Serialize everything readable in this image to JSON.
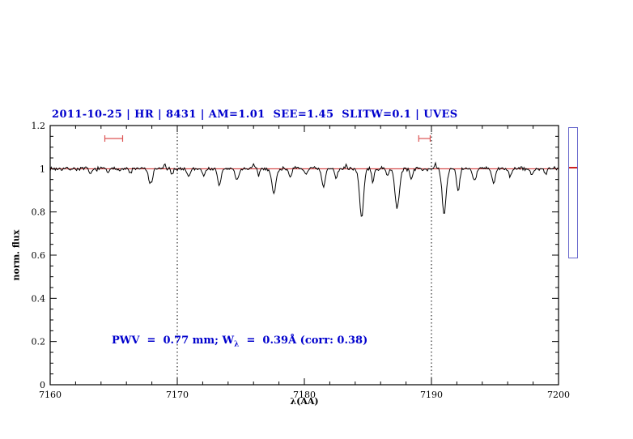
{
  "page": {
    "background": "#ffffff"
  },
  "chart_data": {
    "type": "line",
    "title": "2011-10-25 | HR | 8431 | AM=1.01  SEE=1.45  SLITW=0.1 | UVES",
    "title_color": "#0000cd",
    "xlabel": "λ(AA)",
    "ylabel": "norm. flux",
    "xlim": [
      7160,
      7200
    ],
    "ylim": [
      0,
      1.2
    ],
    "xticks": [
      7160,
      7170,
      7180,
      7190,
      7200
    ],
    "xtick_labels": [
      "7160",
      "7170",
      "7180",
      "7190",
      "7200"
    ],
    "yticks": [
      0,
      0.2,
      0.4,
      0.6,
      0.8,
      1,
      1.2
    ],
    "ytick_labels": [
      "0",
      "0.2",
      "0.4",
      "0.6",
      "0.8",
      "1",
      "1.2"
    ],
    "x_minor_step": 2,
    "y_minor_step": 0.05,
    "grid": false,
    "legend": "none",
    "vlines": {
      "positions": [
        7170,
        7190
      ],
      "style": "dotted",
      "color": "#000000"
    },
    "continuum": {
      "y": 1.0,
      "color": "#cc2222"
    },
    "markers": [
      {
        "x1": 7164.3,
        "x2": 7165.7,
        "y": 1.14
      },
      {
        "x1": 7189.0,
        "x2": 7189.9,
        "y": 1.14
      }
    ],
    "marker_color": "#dd5555",
    "series": [
      {
        "name": "spectrum",
        "color": "#000000"
      }
    ],
    "spectrum_model": {
      "baseline": 1.0,
      "step": 0.08,
      "noise_amp": 0.011,
      "seed": 7,
      "lines": [
        [
          7163.2,
          0.025,
          0.12
        ],
        [
          7164.6,
          0.02,
          0.1
        ],
        [
          7166.3,
          0.02,
          0.1
        ],
        [
          7167.9,
          0.07,
          0.16
        ],
        [
          7169.0,
          -0.02,
          0.07
        ],
        [
          7169.6,
          0.03,
          0.1
        ],
        [
          7170.9,
          0.035,
          0.12
        ],
        [
          7172.1,
          0.035,
          0.1
        ],
        [
          7173.3,
          0.075,
          0.14
        ],
        [
          7174.7,
          0.055,
          0.13
        ],
        [
          7176.0,
          -0.02,
          0.06
        ],
        [
          7176.4,
          0.03,
          0.08
        ],
        [
          7177.6,
          0.115,
          0.16
        ],
        [
          7178.9,
          0.035,
          0.1
        ],
        [
          7180.1,
          0.025,
          0.1
        ],
        [
          7181.5,
          0.085,
          0.14
        ],
        [
          7182.5,
          0.045,
          0.1
        ],
        [
          7183.3,
          -0.025,
          0.06
        ],
        [
          7184.5,
          0.225,
          0.16
        ],
        [
          7185.4,
          0.06,
          0.1
        ],
        [
          7186.5,
          0.03,
          0.1
        ],
        [
          7187.3,
          0.185,
          0.17
        ],
        [
          7188.4,
          0.05,
          0.1
        ],
        [
          7190.3,
          -0.02,
          0.06
        ],
        [
          7191.0,
          0.21,
          0.16
        ],
        [
          7192.1,
          0.1,
          0.12
        ],
        [
          7193.4,
          0.06,
          0.12
        ],
        [
          7194.9,
          0.065,
          0.14
        ],
        [
          7196.2,
          0.035,
          0.1
        ],
        [
          7197.9,
          0.03,
          0.12
        ],
        [
          7199.0,
          0.025,
          0.1
        ]
      ]
    },
    "annotation": {
      "text": "PWV = 0.77 mm; Wλ = 0.39Å (corr: 0.38)",
      "pre": "PWV  =  0.77 mm; W",
      "sub": "λ",
      "post": "  =  0.39Å (corr: 0.38)",
      "color": "#0000cd"
    }
  },
  "side_widget": {
    "border_color": "#6666cc",
    "tick_color": "#cc2222",
    "tick_fraction": 0.3
  }
}
